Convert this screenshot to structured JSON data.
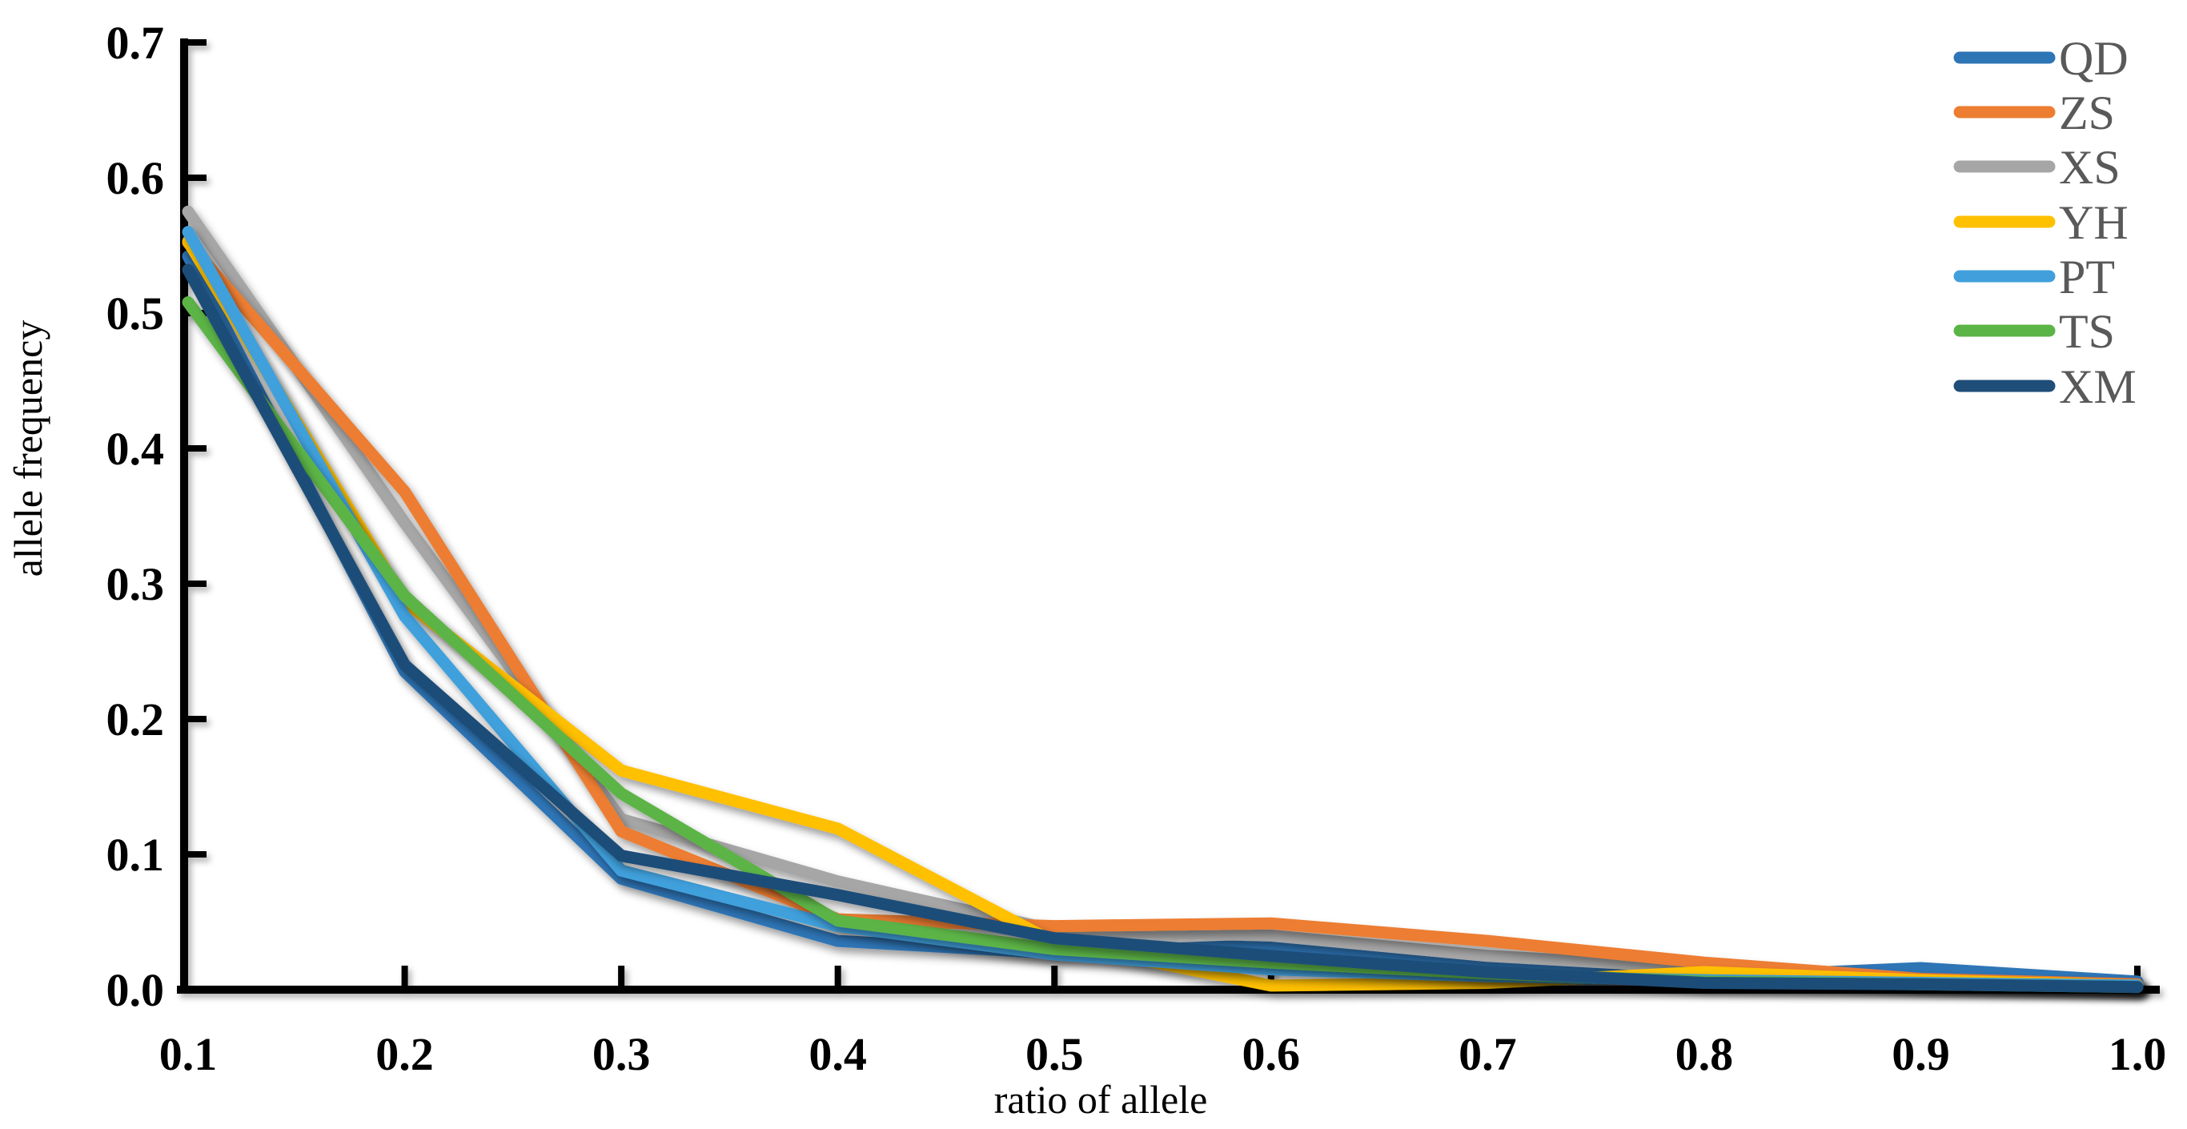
{
  "figure": {
    "background": "#ffffff",
    "axis_color": "#000000",
    "tick_label_color": "#000000",
    "legend_text_color": "#595959"
  },
  "chart_data": {
    "type": "line",
    "title": "",
    "xlabel": "ratio of allele",
    "ylabel": "allele frequency",
    "x": [
      0.1,
      0.2,
      0.3,
      0.4,
      0.5,
      0.6,
      0.7,
      0.8,
      0.9,
      1.0
    ],
    "x_tick_labels": [
      "0.1",
      "0.2",
      "0.3",
      "0.4",
      "0.5",
      "0.6",
      "0.7",
      "0.8",
      "0.9",
      "1.0"
    ],
    "y_tick_labels": [
      "0.0",
      "0.1",
      "0.2",
      "0.3",
      "0.4",
      "0.5",
      "0.6",
      "0.7"
    ],
    "xlim": [
      0.1,
      1.0
    ],
    "ylim": [
      0.0,
      0.7
    ],
    "grid": false,
    "legend_position": "top-right",
    "legend_order": [
      "QD",
      "ZS",
      "XS",
      "YH",
      "PT",
      "TS",
      "XM"
    ],
    "draw_order": [
      "QD",
      "XS",
      "ZS",
      "YH",
      "PT",
      "TS",
      "XM"
    ],
    "series": [
      {
        "name": "QD",
        "color": "#2E75B6",
        "values": [
          0.542,
          0.235,
          0.082,
          0.036,
          0.027,
          0.033,
          0.018,
          0.009,
          0.016,
          0.006
        ]
      },
      {
        "name": "ZS",
        "color": "#ED7D31",
        "values": [
          0.552,
          0.368,
          0.117,
          0.052,
          0.047,
          0.049,
          0.036,
          0.02,
          0.008,
          0.004
        ]
      },
      {
        "name": "XS",
        "color": "#A6A6A6",
        "values": [
          0.575,
          0.345,
          0.126,
          0.08,
          0.044,
          0.04,
          0.025,
          0.016,
          0.006,
          0.003
        ]
      },
      {
        "name": "YH",
        "color": "#FFC000",
        "values": [
          0.553,
          0.287,
          0.162,
          0.119,
          0.035,
          0.003,
          0.005,
          0.013,
          0.007,
          0.003
        ]
      },
      {
        "name": "PT",
        "color": "#41A0DC",
        "values": [
          0.56,
          0.276,
          0.088,
          0.047,
          0.026,
          0.015,
          0.01,
          0.007,
          0.005,
          0.003
        ]
      },
      {
        "name": "TS",
        "color": "#5BB446",
        "values": [
          0.508,
          0.291,
          0.145,
          0.051,
          0.03,
          0.02,
          0.012,
          0.006,
          0.004,
          0.002
        ]
      },
      {
        "name": "XM",
        "color": "#1F4E79",
        "values": [
          0.532,
          0.24,
          0.099,
          0.07,
          0.038,
          0.025,
          0.013,
          0.005,
          0.004,
          0.002
        ]
      }
    ]
  }
}
